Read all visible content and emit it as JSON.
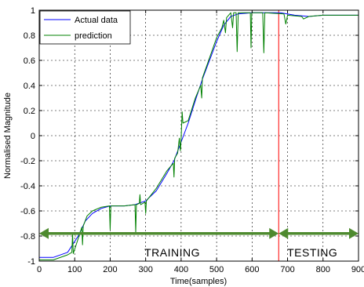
{
  "chart_data": {
    "type": "line",
    "title": "",
    "xlabel": "Time(samples)",
    "ylabel": "Normalised Magnitude",
    "xlim": [
      0,
      900
    ],
    "ylim": [
      -1,
      1
    ],
    "x_ticks": [
      "0",
      "100",
      "200",
      "300",
      "400",
      "500",
      "600",
      "700",
      "800",
      "900"
    ],
    "y_ticks": [
      "-1",
      "-0.8",
      "-0.6",
      "-0.4",
      "-0.2",
      "0",
      "0.2",
      "0.4",
      "0.6",
      "0.8",
      "1"
    ],
    "grid": true,
    "legend_position": "top-left",
    "series": [
      {
        "name": "Actual data",
        "color": "#0000ff",
        "points": [
          [
            0,
            -0.97
          ],
          [
            40,
            -0.97
          ],
          [
            80,
            -0.93
          ],
          [
            110,
            -0.8
          ],
          [
            130,
            -0.68
          ],
          [
            150,
            -0.62
          ],
          [
            175,
            -0.58
          ],
          [
            200,
            -0.56
          ],
          [
            240,
            -0.56
          ],
          [
            270,
            -0.55
          ],
          [
            300,
            -0.52
          ],
          [
            330,
            -0.44
          ],
          [
            360,
            -0.3
          ],
          [
            380,
            -0.2
          ],
          [
            400,
            -0.05
          ],
          [
            420,
            0.1
          ],
          [
            440,
            0.28
          ],
          [
            460,
            0.45
          ],
          [
            480,
            0.6
          ],
          [
            500,
            0.75
          ],
          [
            520,
            0.88
          ],
          [
            540,
            0.95
          ],
          [
            560,
            0.97
          ],
          [
            600,
            0.98
          ],
          [
            640,
            0.98
          ],
          [
            680,
            0.98
          ],
          [
            720,
            0.96
          ],
          [
            760,
            0.95
          ],
          [
            800,
            0.96
          ],
          [
            860,
            0.96
          ],
          [
            900,
            0.96
          ]
        ]
      },
      {
        "name": "prediction",
        "color": "#008000",
        "points": [
          [
            0,
            -0.99
          ],
          [
            40,
            -0.99
          ],
          [
            80,
            -0.95
          ],
          [
            92,
            -0.93
          ],
          [
            94,
            -0.78
          ],
          [
            96,
            -0.94
          ],
          [
            110,
            -0.82
          ],
          [
            120,
            -0.73
          ],
          [
            122,
            -0.87
          ],
          [
            124,
            -0.72
          ],
          [
            135,
            -0.64
          ],
          [
            150,
            -0.6
          ],
          [
            175,
            -0.57
          ],
          [
            198,
            -0.56
          ],
          [
            200,
            -0.75
          ],
          [
            202,
            -0.56
          ],
          [
            240,
            -0.56
          ],
          [
            270,
            -0.55
          ],
          [
            272,
            -0.77
          ],
          [
            274,
            -0.55
          ],
          [
            282,
            -0.54
          ],
          [
            284,
            -0.47
          ],
          [
            286,
            -0.55
          ],
          [
            298,
            -0.53
          ],
          [
            300,
            -0.62
          ],
          [
            302,
            -0.52
          ],
          [
            330,
            -0.42
          ],
          [
            360,
            -0.28
          ],
          [
            378,
            -0.22
          ],
          [
            380,
            -0.33
          ],
          [
            382,
            -0.18
          ],
          [
            390,
            -0.14
          ],
          [
            395,
            -0.02
          ],
          [
            398,
            -0.12
          ],
          [
            400,
            -0.02
          ],
          [
            403,
            0.19
          ],
          [
            405,
            0.1
          ],
          [
            420,
            0.12
          ],
          [
            440,
            0.3
          ],
          [
            455,
            0.4
          ],
          [
            458,
            0.3
          ],
          [
            460,
            0.46
          ],
          [
            480,
            0.62
          ],
          [
            500,
            0.78
          ],
          [
            515,
            0.86
          ],
          [
            520,
            0.92
          ],
          [
            525,
            0.82
          ],
          [
            528,
            0.94
          ],
          [
            540,
            0.98
          ],
          [
            545,
            0.86
          ],
          [
            548,
            0.98
          ],
          [
            555,
            0.98
          ],
          [
            558,
            0.67
          ],
          [
            561,
            0.98
          ],
          [
            595,
            0.98
          ],
          [
            597,
            0.7
          ],
          [
            599,
            0.98
          ],
          [
            630,
            0.98
          ],
          [
            633,
            0.66
          ],
          [
            636,
            0.98
          ],
          [
            690,
            0.97
          ],
          [
            695,
            0.89
          ],
          [
            700,
            0.96
          ],
          [
            740,
            0.95
          ],
          [
            745,
            0.93
          ],
          [
            760,
            0.95
          ],
          [
            800,
            0.96
          ],
          [
            900,
            0.96
          ]
        ]
      }
    ],
    "divider": {
      "x": 675,
      "color": "#ff0000"
    },
    "arrows": [
      {
        "x_start": 0,
        "x_end": 675,
        "y": -0.78,
        "label": "TRAINING",
        "label_x": 375,
        "label_y": -0.93
      },
      {
        "x_start": 675,
        "x_end": 900,
        "y": -0.78,
        "label": "TESTING",
        "label_x": 770,
        "label_y": -0.93
      }
    ],
    "arrow_color": "#4e8a2f"
  }
}
